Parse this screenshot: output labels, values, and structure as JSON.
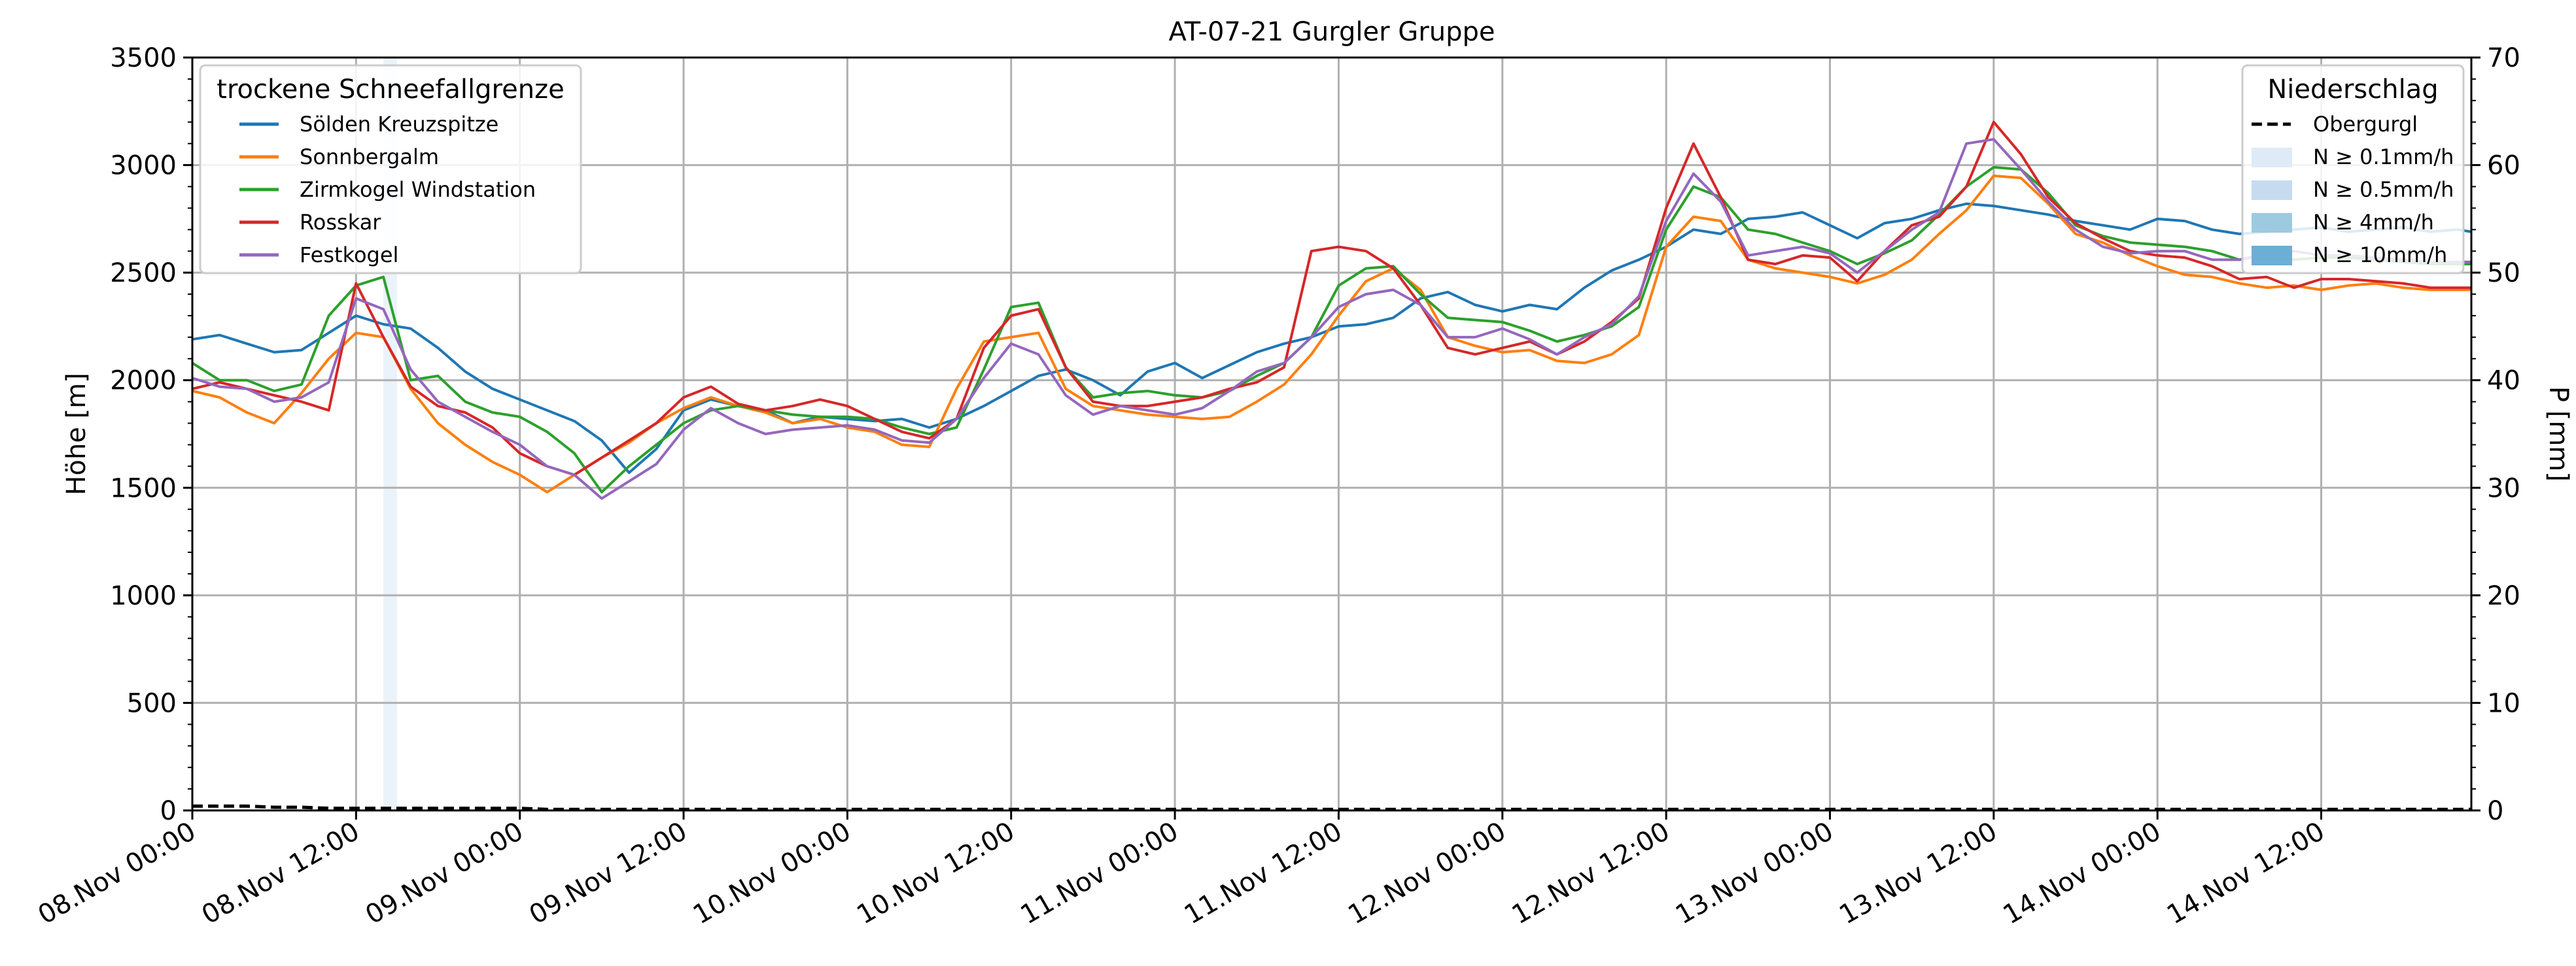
{
  "chart_data": {
    "type": "line",
    "title": "AT-07-21 Gurgler Gruppe",
    "xlabel": "",
    "ylabel": "Höhe [m]",
    "y2label": "P [mm]",
    "ylim": [
      0,
      3500
    ],
    "y2lim": [
      0,
      70
    ],
    "yticks": [
      0,
      500,
      1000,
      1500,
      2000,
      2500,
      3000,
      3500
    ],
    "y2ticks": [
      0,
      10,
      20,
      30,
      40,
      50,
      60,
      70
    ],
    "xlim_hours": [
      0,
      167
    ],
    "xticks": [
      {
        "h": 0,
        "label": "08.Nov 00:00"
      },
      {
        "h": 12,
        "label": "08.Nov 12:00"
      },
      {
        "h": 24,
        "label": "09.Nov 00:00"
      },
      {
        "h": 36,
        "label": "09.Nov 12:00"
      },
      {
        "h": 48,
        "label": "10.Nov 00:00"
      },
      {
        "h": 60,
        "label": "10.Nov 12:00"
      },
      {
        "h": 72,
        "label": "11.Nov 00:00"
      },
      {
        "h": 84,
        "label": "11.Nov 12:00"
      },
      {
        "h": 96,
        "label": "12.Nov 00:00"
      },
      {
        "h": 108,
        "label": "12.Nov 12:00"
      },
      {
        "h": 120,
        "label": "13.Nov 00:00"
      },
      {
        "h": 132,
        "label": "13.Nov 12:00"
      },
      {
        "h": 144,
        "label": "14.Nov 00:00"
      },
      {
        "h": 156,
        "label": "14.Nov 12:00"
      }
    ],
    "grid": true,
    "legend_left": {
      "title": "trockene Schneefallgrenze",
      "placement": "top-left"
    },
    "legend_right": {
      "title": "Niederschlag",
      "placement": "top-right",
      "line_label": "Obergurgl",
      "bands": [
        {
          "label": "N ≥ 0.1mm/h",
          "color": "#deebf7"
        },
        {
          "label": "N ≥ 0.5mm/h",
          "color": "#c6dbef"
        },
        {
          "label": "N ≥ 4mm/h",
          "color": "#9ecae1"
        },
        {
          "label": "N ≥ 10mm/h",
          "color": "#6baed6"
        }
      ]
    },
    "series": [
      {
        "name": "Sölden Kreuzspitze",
        "color": "#1f77b4",
        "x": [
          0,
          2,
          4,
          6,
          8,
          10,
          12,
          14,
          16,
          18,
          20,
          22,
          24,
          26,
          28,
          30,
          32,
          34,
          36,
          38,
          40,
          42,
          44,
          46,
          48,
          50,
          52,
          54,
          56,
          58,
          60,
          62,
          64,
          66,
          68,
          70,
          72,
          74,
          76,
          78,
          80,
          82,
          84,
          86,
          88,
          90,
          92,
          94,
          96,
          98,
          100,
          102,
          104,
          106,
          108,
          110,
          112,
          114,
          116,
          118,
          120,
          122,
          124,
          126,
          128,
          130,
          132,
          134,
          136,
          138,
          140,
          142,
          144,
          146,
          148,
          150,
          152,
          154,
          156,
          158,
          160,
          162,
          164,
          166,
          167
        ],
        "y": [
          2190,
          2210,
          2170,
          2130,
          2140,
          2220,
          2300,
          2260,
          2240,
          2150,
          2040,
          1960,
          1910,
          1860,
          1810,
          1720,
          1570,
          1680,
          1860,
          1910,
          1880,
          1860,
          1800,
          1830,
          1820,
          1810,
          1820,
          1780,
          1820,
          1880,
          1950,
          2020,
          2050,
          2000,
          1930,
          2040,
          2080,
          2010,
          2070,
          2130,
          2170,
          2200,
          2250,
          2260,
          2290,
          2380,
          2410,
          2350,
          2320,
          2350,
          2330,
          2430,
          2510,
          2560,
          2620,
          2700,
          2680,
          2750,
          2760,
          2780,
          2720,
          2660,
          2730,
          2750,
          2790,
          2820,
          2810,
          2790,
          2770,
          2740,
          2720,
          2700,
          2750,
          2740,
          2700,
          2680,
          2690,
          2700,
          2710,
          2690,
          2700,
          2710,
          2690,
          2700,
          2690
        ]
      },
      {
        "name": "Sonnbergalm",
        "color": "#ff7f0e",
        "x": [
          0,
          2,
          4,
          6,
          8,
          10,
          12,
          14,
          16,
          18,
          20,
          22,
          24,
          26,
          28,
          30,
          32,
          34,
          36,
          38,
          40,
          42,
          44,
          46,
          48,
          50,
          52,
          54,
          56,
          58,
          60,
          62,
          64,
          66,
          68,
          70,
          72,
          74,
          76,
          78,
          80,
          82,
          84,
          86,
          88,
          90,
          92,
          94,
          96,
          98,
          100,
          102,
          104,
          106,
          108,
          110,
          112,
          114,
          116,
          118,
          120,
          122,
          124,
          126,
          128,
          130,
          132,
          134,
          136,
          138,
          140,
          142,
          144,
          146,
          148,
          150,
          152,
          154,
          156,
          158,
          160,
          162,
          164,
          166,
          167
        ],
        "y": [
          1950,
          1920,
          1850,
          1800,
          1940,
          2100,
          2220,
          2200,
          1960,
          1800,
          1700,
          1620,
          1560,
          1480,
          1560,
          1640,
          1710,
          1800,
          1870,
          1920,
          1880,
          1850,
          1800,
          1820,
          1780,
          1760,
          1700,
          1690,
          1960,
          2180,
          2200,
          2220,
          1960,
          1880,
          1860,
          1840,
          1830,
          1820,
          1830,
          1900,
          1980,
          2120,
          2300,
          2460,
          2520,
          2420,
          2200,
          2160,
          2130,
          2140,
          2090,
          2080,
          2120,
          2210,
          2620,
          2760,
          2740,
          2560,
          2520,
          2500,
          2480,
          2450,
          2490,
          2560,
          2680,
          2790,
          2950,
          2940,
          2820,
          2680,
          2640,
          2580,
          2530,
          2490,
          2480,
          2450,
          2430,
          2440,
          2420,
          2440,
          2450,
          2430,
          2420,
          2420,
          2420
        ]
      },
      {
        "name": "Zirmkogel Windstation",
        "color": "#2ca02c",
        "x": [
          0,
          2,
          4,
          6,
          8,
          10,
          12,
          14,
          16,
          18,
          20,
          22,
          24,
          26,
          28,
          30,
          32,
          34,
          36,
          38,
          40,
          42,
          44,
          46,
          48,
          50,
          52,
          54,
          56,
          58,
          60,
          62,
          64,
          66,
          68,
          70,
          72,
          74,
          76,
          78,
          80,
          82,
          84,
          86,
          88,
          90,
          92,
          94,
          96,
          98,
          100,
          102,
          104,
          106,
          108,
          110,
          112,
          114,
          116,
          118,
          120,
          122,
          124,
          126,
          128,
          130,
          132,
          134,
          136,
          138,
          140,
          142,
          144,
          146,
          148,
          150,
          152,
          154,
          156,
          158,
          160,
          162,
          164,
          166,
          167
        ],
        "y": [
          2080,
          2000,
          2000,
          1950,
          1980,
          2300,
          2440,
          2480,
          2000,
          2020,
          1900,
          1850,
          1830,
          1760,
          1660,
          1480,
          1600,
          1700,
          1800,
          1860,
          1880,
          1860,
          1840,
          1830,
          1830,
          1820,
          1780,
          1750,
          1780,
          2050,
          2340,
          2360,
          2060,
          1920,
          1940,
          1950,
          1930,
          1920,
          1950,
          2020,
          2080,
          2200,
          2440,
          2520,
          2530,
          2400,
          2290,
          2280,
          2270,
          2230,
          2180,
          2210,
          2250,
          2340,
          2700,
          2900,
          2850,
          2700,
          2680,
          2640,
          2600,
          2540,
          2590,
          2650,
          2770,
          2900,
          2990,
          2980,
          2870,
          2720,
          2670,
          2640,
          2630,
          2620,
          2600,
          2560,
          2580,
          2560,
          2570,
          2570,
          2560,
          2550,
          2540,
          2540,
          2540
        ]
      },
      {
        "name": "Rosskar",
        "color": "#d62728",
        "x": [
          0,
          2,
          4,
          6,
          8,
          10,
          12,
          14,
          16,
          18,
          20,
          22,
          24,
          26,
          28,
          30,
          32,
          34,
          36,
          38,
          40,
          42,
          44,
          46,
          48,
          50,
          52,
          54,
          56,
          58,
          60,
          62,
          64,
          66,
          68,
          70,
          72,
          74,
          76,
          78,
          80,
          82,
          84,
          86,
          88,
          90,
          92,
          94,
          96,
          98,
          100,
          102,
          104,
          106,
          108,
          110,
          112,
          114,
          116,
          118,
          120,
          122,
          124,
          126,
          128,
          130,
          132,
          134,
          136,
          138,
          140,
          142,
          144,
          146,
          148,
          150,
          152,
          154,
          156,
          158,
          160,
          162,
          164,
          166,
          167
        ],
        "y": [
          1960,
          1990,
          1960,
          1930,
          1900,
          1860,
          2450,
          2200,
          1970,
          1880,
          1850,
          1780,
          1660,
          1600,
          1560,
          1640,
          1720,
          1800,
          1920,
          1970,
          1890,
          1860,
          1880,
          1910,
          1880,
          1820,
          1760,
          1730,
          1820,
          2150,
          2300,
          2330,
          2060,
          1900,
          1880,
          1880,
          1900,
          1920,
          1960,
          1990,
          2060,
          2600,
          2620,
          2600,
          2520,
          2350,
          2150,
          2120,
          2150,
          2180,
          2120,
          2180,
          2270,
          2380,
          2800,
          3100,
          2850,
          2560,
          2540,
          2580,
          2570,
          2460,
          2600,
          2720,
          2760,
          2900,
          3200,
          3050,
          2850,
          2730,
          2660,
          2600,
          2580,
          2570,
          2530,
          2470,
          2480,
          2430,
          2470,
          2470,
          2460,
          2450,
          2430,
          2430,
          2430
        ]
      },
      {
        "name": "Festkogel",
        "color": "#9467bd",
        "x": [
          0,
          2,
          4,
          6,
          8,
          10,
          12,
          14,
          16,
          18,
          20,
          22,
          24,
          26,
          28,
          30,
          32,
          34,
          36,
          38,
          40,
          42,
          44,
          46,
          48,
          50,
          52,
          54,
          56,
          58,
          60,
          62,
          64,
          66,
          68,
          70,
          72,
          74,
          76,
          78,
          80,
          82,
          84,
          86,
          88,
          90,
          92,
          94,
          96,
          98,
          100,
          102,
          104,
          106,
          108,
          110,
          112,
          114,
          116,
          118,
          120,
          122,
          124,
          126,
          128,
          130,
          132,
          134,
          136,
          138,
          140,
          142,
          144,
          146,
          148,
          150,
          152,
          154,
          156,
          158,
          160,
          162,
          164,
          166,
          167
        ],
        "y": [
          2010,
          1970,
          1960,
          1900,
          1920,
          1990,
          2380,
          2330,
          2050,
          1900,
          1830,
          1760,
          1700,
          1600,
          1560,
          1450,
          1530,
          1610,
          1770,
          1870,
          1800,
          1750,
          1770,
          1780,
          1790,
          1770,
          1720,
          1710,
          1820,
          2010,
          2170,
          2120,
          1930,
          1840,
          1880,
          1860,
          1840,
          1870,
          1950,
          2040,
          2080,
          2200,
          2340,
          2400,
          2420,
          2350,
          2200,
          2200,
          2240,
          2190,
          2120,
          2200,
          2260,
          2390,
          2740,
          2960,
          2830,
          2580,
          2600,
          2620,
          2590,
          2500,
          2600,
          2700,
          2780,
          3100,
          3120,
          2980,
          2830,
          2700,
          2620,
          2590,
          2600,
          2600,
          2560,
          2560,
          2590,
          2600,
          2580,
          2580,
          2570,
          2560,
          2550,
          2550,
          2550
        ]
      }
    ],
    "precip_series": {
      "name": "Obergurgl",
      "color": "#000000",
      "x": [
        0,
        2,
        4,
        6,
        8,
        10,
        12,
        14,
        16,
        18,
        20,
        22,
        24,
        26,
        28,
        30,
        32,
        167
      ],
      "y": [
        0.4,
        0.4,
        0.4,
        0.3,
        0.3,
        0.2,
        0.2,
        0.2,
        0.2,
        0.2,
        0.2,
        0.2,
        0.2,
        0.1,
        0.1,
        0.1,
        0.1,
        0.1
      ]
    },
    "precip_bands": [
      {
        "start_h": 14.0,
        "end_h": 15.0,
        "level": "N ≥ 0.1mm/h"
      }
    ]
  }
}
